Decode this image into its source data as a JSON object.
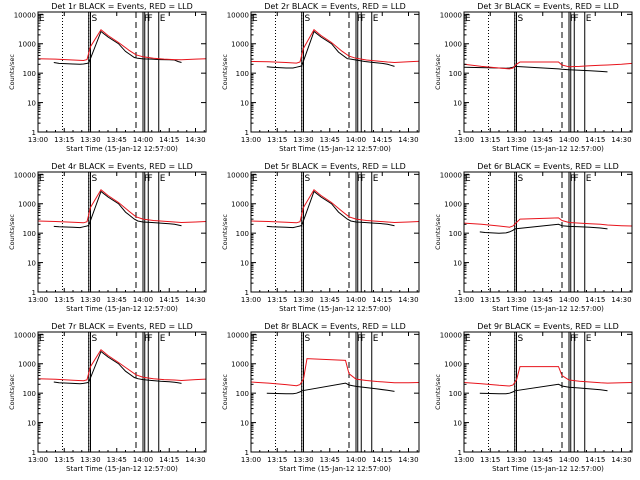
{
  "colors": {
    "events": "#000000",
    "lld": "#e8141c",
    "axes": "#000000",
    "background": "#ffffff"
  },
  "shared": {
    "xlabel": "Start Time (15-Jan-12 12:57:00)",
    "ylabel": "Counts/sec",
    "x_tick_labels": [
      "13:00",
      "13:15",
      "13:30",
      "13:45",
      "14:00",
      "14:15",
      "14:30"
    ],
    "x_tick_minutes": [
      0,
      15,
      30,
      45,
      60,
      75,
      90
    ],
    "x_range_minutes": [
      0,
      96
    ],
    "y_tick_labels": [
      "1",
      "10",
      "100",
      "1000",
      "10000"
    ],
    "y_tick_values": [
      1,
      10,
      100,
      1000,
      10000
    ],
    "y_scale": "log",
    "y_range": [
      1,
      12000
    ],
    "flag_labels": {
      "eclipse": "E",
      "saa": "S",
      "flare": "F"
    }
  },
  "chart_data": [
    {
      "type": "line",
      "title": "Det 1r BLACK = Events, RED = LLD",
      "series": [
        {
          "name": "Events",
          "x": [
            9,
            12,
            20,
            24,
            26,
            28,
            29,
            36,
            40,
            46,
            50,
            55,
            57,
            60,
            65,
            70,
            75,
            78,
            80,
            82
          ],
          "y": [
            230,
            215,
            205,
            200,
            205,
            215,
            225,
            2600,
            1700,
            1000,
            550,
            340,
            320,
            305,
            300,
            290,
            285,
            280,
            250,
            230
          ]
        },
        {
          "name": "LLD",
          "x": [
            0,
            10,
            20,
            26,
            28,
            30,
            36,
            40,
            46,
            52,
            56,
            60,
            66,
            72,
            78,
            82,
            90,
            96
          ],
          "y": [
            310,
            300,
            280,
            270,
            290,
            800,
            3000,
            1900,
            1100,
            600,
            420,
            360,
            320,
            300,
            290,
            285,
            300,
            310
          ]
        }
      ]
    },
    {
      "type": "line",
      "title": "Det 2r BLACK = Events, RED = LLD",
      "series": [
        {
          "name": "Events",
          "x": [
            9,
            12,
            20,
            24,
            26,
            28,
            29,
            36,
            40,
            46,
            50,
            55,
            57,
            60,
            65,
            70,
            75,
            78,
            80,
            82
          ],
          "y": [
            165,
            160,
            150,
            150,
            160,
            170,
            180,
            2600,
            1700,
            1000,
            520,
            310,
            300,
            280,
            250,
            230,
            215,
            200,
            185,
            170
          ]
        },
        {
          "name": "LLD",
          "x": [
            0,
            10,
            20,
            26,
            28,
            30,
            36,
            40,
            46,
            52,
            56,
            60,
            66,
            72,
            78,
            82,
            90,
            96
          ],
          "y": [
            250,
            245,
            230,
            220,
            240,
            700,
            3000,
            1900,
            1100,
            560,
            380,
            320,
            280,
            260,
            240,
            230,
            245,
            255
          ]
        }
      ]
    },
    {
      "type": "line",
      "title": "Det 3r BLACK = Events, RED = LLD",
      "series": [
        {
          "name": "Events",
          "x": [
            0,
            10,
            20,
            24,
            26,
            28,
            29,
            54,
            56,
            60,
            66,
            72,
            78,
            82
          ],
          "y": [
            160,
            155,
            150,
            148,
            150,
            160,
            170,
            140,
            135,
            130,
            125,
            120,
            115,
            110
          ]
        },
        {
          "name": "LLD",
          "x": [
            0,
            10,
            20,
            26,
            28,
            30,
            32,
            54,
            56,
            60,
            66,
            72,
            78,
            82,
            90,
            96
          ],
          "y": [
            200,
            170,
            150,
            140,
            150,
            200,
            240,
            240,
            190,
            165,
            170,
            180,
            185,
            190,
            200,
            215
          ]
        }
      ]
    },
    {
      "type": "line",
      "title": "Det 4r BLACK = Events, RED = LLD",
      "series": [
        {
          "name": "Events",
          "x": [
            9,
            12,
            20,
            24,
            26,
            28,
            29,
            36,
            40,
            46,
            50,
            55,
            57,
            60,
            65,
            70,
            75,
            78,
            80,
            82
          ],
          "y": [
            170,
            165,
            160,
            155,
            165,
            175,
            185,
            2600,
            1700,
            1000,
            520,
            300,
            260,
            240,
            230,
            220,
            210,
            200,
            190,
            180
          ]
        },
        {
          "name": "LLD",
          "x": [
            0,
            10,
            20,
            26,
            28,
            30,
            36,
            40,
            46,
            52,
            56,
            60,
            66,
            72,
            78,
            82,
            90,
            96
          ],
          "y": [
            260,
            250,
            235,
            225,
            245,
            750,
            3000,
            1900,
            1100,
            560,
            360,
            300,
            270,
            255,
            240,
            230,
            240,
            250
          ]
        }
      ]
    },
    {
      "type": "line",
      "title": "Det 5r BLACK = Events, RED = LLD",
      "series": [
        {
          "name": "Events",
          "x": [
            9,
            12,
            20,
            24,
            26,
            28,
            29,
            36,
            40,
            46,
            50,
            55,
            57,
            60,
            65,
            70,
            75,
            78,
            80,
            82
          ],
          "y": [
            170,
            165,
            160,
            155,
            165,
            175,
            185,
            2600,
            1700,
            1000,
            520,
            300,
            260,
            240,
            230,
            220,
            210,
            200,
            190,
            180
          ]
        },
        {
          "name": "LLD",
          "x": [
            0,
            10,
            20,
            26,
            28,
            30,
            36,
            40,
            46,
            52,
            56,
            60,
            66,
            72,
            78,
            82,
            90,
            96
          ],
          "y": [
            260,
            250,
            235,
            225,
            245,
            750,
            3000,
            1900,
            1100,
            560,
            360,
            300,
            270,
            255,
            240,
            230,
            240,
            250
          ]
        }
      ]
    },
    {
      "type": "line",
      "title": "Det 6r BLACK = Events, RED = LLD",
      "series": [
        {
          "name": "Events",
          "x": [
            9,
            12,
            20,
            24,
            26,
            28,
            29,
            54,
            56,
            60,
            66,
            72,
            78,
            82
          ],
          "y": [
            110,
            105,
            100,
            102,
            110,
            125,
            140,
            200,
            180,
            170,
            165,
            160,
            150,
            140
          ]
        },
        {
          "name": "LLD",
          "x": [
            0,
            10,
            20,
            26,
            28,
            30,
            32,
            54,
            56,
            60,
            66,
            72,
            78,
            82,
            90,
            96
          ],
          "y": [
            220,
            200,
            175,
            160,
            175,
            230,
            300,
            330,
            270,
            230,
            220,
            210,
            200,
            190,
            180,
            175
          ]
        }
      ]
    },
    {
      "type": "line",
      "title": "Det 7r BLACK = Events, RED = LLD",
      "series": [
        {
          "name": "Events",
          "x": [
            9,
            12,
            20,
            24,
            26,
            28,
            29,
            36,
            40,
            46,
            50,
            55,
            57,
            60,
            65,
            70,
            75,
            78,
            80,
            82
          ],
          "y": [
            240,
            225,
            215,
            210,
            215,
            225,
            240,
            2600,
            1700,
            1000,
            560,
            340,
            310,
            290,
            270,
            255,
            245,
            235,
            225,
            215
          ]
        },
        {
          "name": "LLD",
          "x": [
            0,
            10,
            20,
            26,
            28,
            30,
            36,
            40,
            46,
            52,
            56,
            60,
            66,
            72,
            78,
            82,
            90,
            96
          ],
          "y": [
            310,
            295,
            275,
            265,
            285,
            800,
            3000,
            1900,
            1100,
            620,
            420,
            350,
            310,
            290,
            280,
            270,
            290,
            300
          ]
        }
      ]
    },
    {
      "type": "line",
      "title": "Det 8r BLACK = Events, RED = LLD",
      "series": [
        {
          "name": "Events",
          "x": [
            9,
            12,
            20,
            24,
            26,
            28,
            29,
            54,
            56,
            60,
            66,
            72,
            78,
            82
          ],
          "y": [
            100,
            98,
            95,
            95,
            100,
            110,
            120,
            220,
            190,
            170,
            155,
            140,
            125,
            115
          ]
        },
        {
          "name": "LLD",
          "x": [
            0,
            10,
            20,
            26,
            28,
            30,
            32,
            54,
            56,
            60,
            66,
            72,
            78,
            82,
            90,
            96
          ],
          "y": [
            240,
            220,
            195,
            180,
            195,
            300,
            1500,
            1300,
            460,
            300,
            270,
            250,
            235,
            225,
            225,
            230
          ]
        }
      ]
    },
    {
      "type": "line",
      "title": "Det 9r BLACK = Events, RED = LLD",
      "series": [
        {
          "name": "Events",
          "x": [
            9,
            12,
            20,
            24,
            26,
            28,
            29,
            54,
            56,
            60,
            66,
            72,
            78,
            82
          ],
          "y": [
            100,
            98,
            95,
            95,
            100,
            110,
            120,
            200,
            175,
            160,
            150,
            140,
            130,
            120
          ]
        },
        {
          "name": "LLD",
          "x": [
            0,
            10,
            20,
            26,
            28,
            30,
            32,
            54,
            56,
            60,
            66,
            72,
            78,
            82,
            90,
            96
          ],
          "y": [
            230,
            210,
            185,
            175,
            190,
            280,
            800,
            800,
            400,
            280,
            255,
            240,
            225,
            220,
            225,
            230
          ]
        }
      ]
    }
  ],
  "annotations": {
    "dotted_lines_minutes": [
      14,
      29
    ],
    "dashed_line_minutes": [
      56
    ],
    "solid_markers_minutes": [
      29,
      30,
      60,
      61,
      63,
      69
    ],
    "eclipse_minutes": 0,
    "saa_minutes": 30,
    "flare_minutes": [
      60,
      62
    ],
    "eclipse_end_minutes": 69
  }
}
